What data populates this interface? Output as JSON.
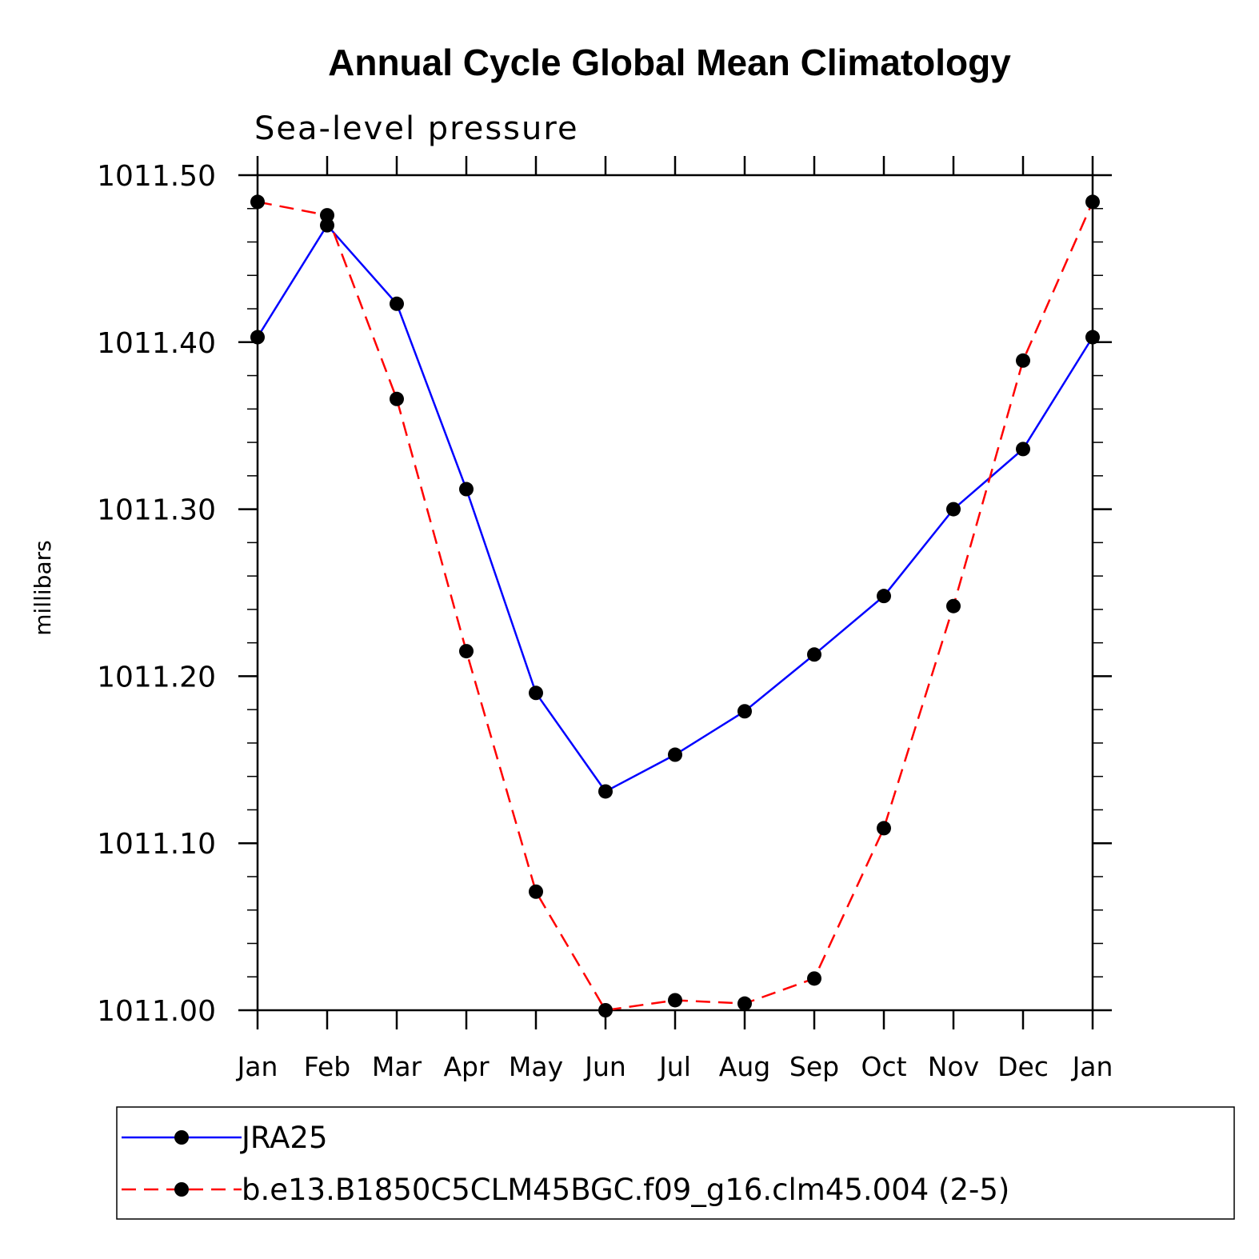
{
  "chart_data": {
    "type": "line",
    "title": "Annual Cycle Global Mean Climatology",
    "subtitle": "Sea-level pressure",
    "xlabel": "",
    "ylabel": "millibars",
    "categories": [
      "Jan",
      "Feb",
      "Mar",
      "Apr",
      "May",
      "Jun",
      "Jul",
      "Aug",
      "Sep",
      "Oct",
      "Nov",
      "Dec",
      "Jan"
    ],
    "ylim": [
      1011.0,
      1011.5
    ],
    "yticks": [
      1011.0,
      1011.1,
      1011.2,
      1011.3,
      1011.4,
      1011.5
    ],
    "ytick_labels": [
      "1011.00",
      "1011.10",
      "1011.20",
      "1011.30",
      "1011.40",
      "1011.50"
    ],
    "series": [
      {
        "name": "JRA25",
        "color": "#0000ff",
        "dashed": false,
        "values": [
          1011.403,
          1011.47,
          1011.423,
          1011.312,
          1011.19,
          1011.131,
          1011.153,
          1011.179,
          1011.213,
          1011.248,
          1011.3,
          1011.336,
          1011.403
        ]
      },
      {
        "name": "b.e13.B1850C5CLM45BGC.f09_g16.clm45.004 (2-5)",
        "color": "#ff0000",
        "dashed": true,
        "values": [
          1011.484,
          1011.476,
          1011.366,
          1011.215,
          1011.071,
          1011.0,
          1011.006,
          1011.004,
          1011.019,
          1011.109,
          1011.242,
          1011.389,
          1011.484
        ]
      }
    ],
    "legend_position": "bottom"
  }
}
